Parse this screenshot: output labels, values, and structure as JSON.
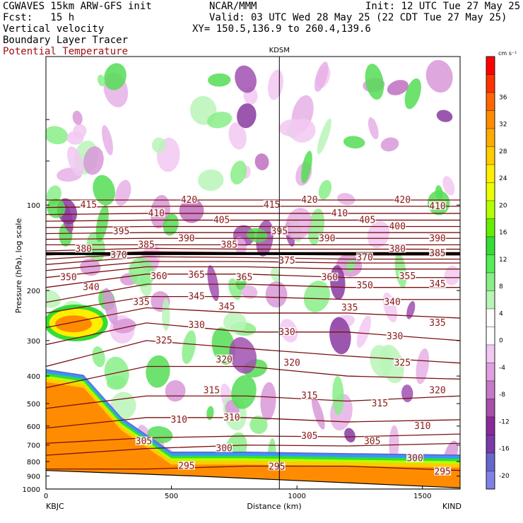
{
  "header": {
    "line1_left": "CGWAVES 15km ARW-GFS init",
    "line1_mid": "NCAR/MMM",
    "line1_right": "Init: 12 UTC Tue 27 May 25",
    "line2_left": "Fcst:   15 h",
    "line2_right": "Valid: 03 UTC Wed 28 May 25 (22 CDT Tue 27 May 25)",
    "line3_left": "Vertical velocity",
    "line3_right": "XY= 150.5,136.9 to 260.4,139.6",
    "line4_left": "Boundary Layer Tracer",
    "line5_left": "Potential Temperature"
  },
  "colors": {
    "theta_contour": "#7a1010",
    "label_brown": "#8b1a1a",
    "title_red": "#a01010"
  },
  "chart_data": {
    "type": "heatmap",
    "title": "",
    "station_marker": {
      "label": "KDSM",
      "x": 930
    },
    "xlabel": "Distance (km)",
    "ylabel": "Pressure (hPa), log scale",
    "xlim": [
      0,
      1650
    ],
    "ylim": [
      1000,
      30
    ],
    "x_ticks": [
      0,
      500,
      1000,
      1500
    ],
    "x_tick_labels": [
      "0",
      "500",
      "1000",
      "1500"
    ],
    "y_ticks": [
      100,
      200,
      300,
      400,
      500,
      600,
      700,
      800,
      900,
      1000
    ],
    "y_tick_labels": [
      "100",
      "200",
      "300",
      "400",
      "500",
      "600",
      "700",
      "800",
      "900",
      "1000"
    ],
    "x_endpoint_labels": {
      "left": "KBJC",
      "right": "KIND"
    },
    "colorbar": {
      "unit": "cm s⁻¹",
      "labels": [
        "36",
        "32",
        "28",
        "24",
        "20",
        "16",
        "12",
        "8",
        "4",
        "0",
        "-4",
        "-8",
        "-12",
        "-16",
        "-20"
      ],
      "colors": [
        "#ff0000",
        "#ff3300",
        "#ff6600",
        "#ff8c00",
        "#ffaa00",
        "#ffcc00",
        "#ffee00",
        "#eaff00",
        "#b4ff00",
        "#66ee00",
        "#33dd33",
        "#55ee55",
        "#88ee88",
        "#b8f5b8",
        "#ffffff",
        "#ffffff",
        "#f2c8f2",
        "#e0a0e0",
        "#c878c8",
        "#a850a8",
        "#8a2a9a",
        "#7a3aa8",
        "#6666cc",
        "#8080e8"
      ]
    },
    "theta_contours": [
      {
        "value": 295,
        "p": [
          850,
          850,
          830,
          830,
          860
        ]
      },
      {
        "value": 300,
        "p": [
          760,
          720,
          700,
          705,
          690
        ]
      },
      {
        "value": 305,
        "p": [
          690,
          660,
          650,
          655,
          640
        ]
      },
      {
        "value": 310,
        "p": [
          610,
          560,
          560,
          580,
          570
        ]
      },
      {
        "value": 315,
        "p": [
          520,
          470,
          470,
          490,
          470
        ]
      },
      {
        "value": 320,
        "p": [
          440,
          370,
          370,
          400,
          410
        ]
      },
      {
        "value": 325,
        "p": [
          370,
          300,
          320,
          340,
          360
        ]
      },
      {
        "value": 330,
        "p": [
          310,
          260,
          280,
          280,
          300
        ]
      },
      {
        "value": 335,
        "p": [
          270,
          230,
          240,
          240,
          250
        ]
      },
      {
        "value": 340,
        "p": [
          240,
          210,
          210,
          215,
          215
        ]
      },
      {
        "value": 345,
        "p": [
          220,
          190,
          190,
          195,
          195
        ]
      },
      {
        "value": 350,
        "p": [
          195,
          175,
          175,
          180,
          180
        ]
      },
      {
        "value": 355,
        "p": [
          180,
          165,
          165,
          168,
          168
        ]
      },
      {
        "value": 360,
        "p": [
          170,
          158,
          158,
          160,
          160
        ]
      },
      {
        "value": 365,
        "p": [
          162,
          152,
          153,
          155,
          155
        ]
      },
      {
        "value": 370,
        "p": [
          155,
          148,
          149,
          150,
          150
        ]
      },
      {
        "value": 375,
        "p": [
          150,
          146,
          147,
          147,
          147
        ]
      },
      {
        "value": 380,
        "p": [
          145,
          142,
          143,
          143,
          143
        ]
      },
      {
        "value": 385,
        "p": [
          138,
          138,
          138,
          138,
          138
        ]
      },
      {
        "value": 390,
        "p": [
          132,
          131,
          131,
          131,
          131
        ]
      },
      {
        "value": 395,
        "p": [
          126,
          125,
          125,
          125,
          125
        ]
      },
      {
        "value": 400,
        "p": [
          120,
          119,
          119,
          119,
          119
        ]
      },
      {
        "value": 405,
        "p": [
          114,
          113,
          113,
          113,
          113
        ]
      },
      {
        "value": 410,
        "p": [
          108,
          107,
          107,
          107,
          107
        ]
      },
      {
        "value": 415,
        "p": [
          102,
          101,
          101,
          101,
          101
        ]
      },
      {
        "value": 420,
        "p": [
          96,
          96,
          96,
          96,
          96
        ]
      }
    ],
    "theta_labels": [
      {
        "text": "415",
        "x": 170,
        "p": 100
      },
      {
        "text": "420",
        "x": 570,
        "p": 96
      },
      {
        "text": "410",
        "x": 440,
        "p": 107
      },
      {
        "text": "405",
        "x": 700,
        "p": 113
      },
      {
        "text": "395",
        "x": 300,
        "p": 124
      },
      {
        "text": "385",
        "x": 400,
        "p": 138
      },
      {
        "text": "390",
        "x": 560,
        "p": 131
      },
      {
        "text": "380",
        "x": 150,
        "p": 143
      },
      {
        "text": "370",
        "x": 290,
        "p": 150
      },
      {
        "text": "385",
        "x": 730,
        "p": 138
      },
      {
        "text": "415",
        "x": 900,
        "p": 100
      },
      {
        "text": "420",
        "x": 1050,
        "p": 96
      },
      {
        "text": "410",
        "x": 1170,
        "p": 107
      },
      {
        "text": "405",
        "x": 1280,
        "p": 113
      },
      {
        "text": "400",
        "x": 1400,
        "p": 119
      },
      {
        "text": "390",
        "x": 1560,
        "p": 131
      },
      {
        "text": "395",
        "x": 930,
        "p": 124
      },
      {
        "text": "390",
        "x": 1120,
        "p": 131
      },
      {
        "text": "380",
        "x": 1400,
        "p": 143
      },
      {
        "text": "420",
        "x": 1420,
        "p": 96
      },
      {
        "text": "410",
        "x": 1560,
        "p": 101
      },
      {
        "text": "375",
        "x": 960,
        "p": 157
      },
      {
        "text": "370",
        "x": 1270,
        "p": 153
      },
      {
        "text": "385",
        "x": 1560,
        "p": 148
      },
      {
        "text": "350",
        "x": 90,
        "p": 180
      },
      {
        "text": "360",
        "x": 450,
        "p": 178
      },
      {
        "text": "365",
        "x": 600,
        "p": 176
      },
      {
        "text": "365",
        "x": 790,
        "p": 180
      },
      {
        "text": "360",
        "x": 1130,
        "p": 180
      },
      {
        "text": "355",
        "x": 1440,
        "p": 178
      },
      {
        "text": "345",
        "x": 1560,
        "p": 190
      },
      {
        "text": "340",
        "x": 180,
        "p": 195
      },
      {
        "text": "350",
        "x": 1270,
        "p": 192
      },
      {
        "text": "335",
        "x": 380,
        "p": 220
      },
      {
        "text": "345",
        "x": 600,
        "p": 210
      },
      {
        "text": "345",
        "x": 720,
        "p": 228
      },
      {
        "text": "335",
        "x": 1210,
        "p": 230
      },
      {
        "text": "340",
        "x": 1380,
        "p": 220
      },
      {
        "text": "335",
        "x": 1560,
        "p": 260
      },
      {
        "text": "330",
        "x": 600,
        "p": 265
      },
      {
        "text": "330",
        "x": 960,
        "p": 280
      },
      {
        "text": "330",
        "x": 1390,
        "p": 290
      },
      {
        "text": "325",
        "x": 470,
        "p": 300
      },
      {
        "text": "320",
        "x": 710,
        "p": 350
      },
      {
        "text": "320",
        "x": 980,
        "p": 360
      },
      {
        "text": "325",
        "x": 1420,
        "p": 360
      },
      {
        "text": "315",
        "x": 660,
        "p": 450
      },
      {
        "text": "315",
        "x": 1050,
        "p": 470
      },
      {
        "text": "315",
        "x": 1330,
        "p": 500
      },
      {
        "text": "320",
        "x": 1560,
        "p": 450
      },
      {
        "text": "310",
        "x": 530,
        "p": 570
      },
      {
        "text": "310",
        "x": 740,
        "p": 560
      },
      {
        "text": "310",
        "x": 1500,
        "p": 600
      },
      {
        "text": "305",
        "x": 390,
        "p": 680
      },
      {
        "text": "305",
        "x": 1050,
        "p": 650
      },
      {
        "text": "305",
        "x": 1300,
        "p": 680
      },
      {
        "text": "300",
        "x": 710,
        "p": 720
      },
      {
        "text": "300",
        "x": 1470,
        "p": 780
      },
      {
        "text": "295",
        "x": 560,
        "p": 830
      },
      {
        "text": "295",
        "x": 920,
        "p": 835
      },
      {
        "text": "295",
        "x": 1580,
        "p": 870
      }
    ],
    "boundary_layer": {
      "description": "",
      "top_p": [
        420,
        440,
        620,
        820,
        820,
        830,
        840
      ]
    },
    "tropopause_line_p": 150
  }
}
